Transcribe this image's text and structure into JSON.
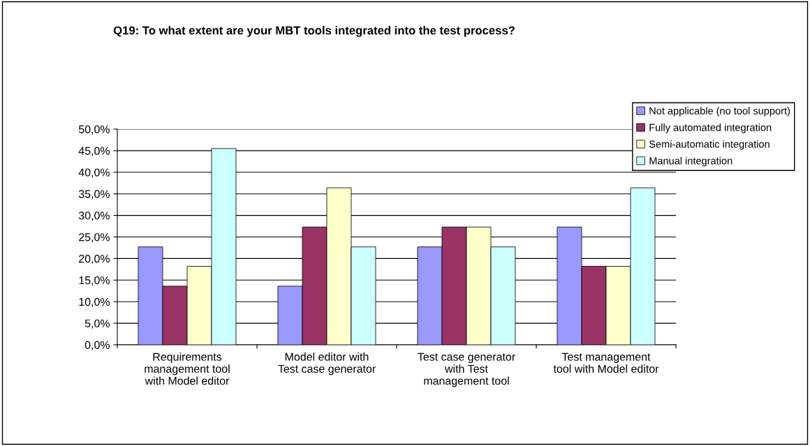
{
  "chart_data": {
    "type": "bar",
    "title": "Q19: To what extent are your MBT tools integrated into the test process?",
    "categories": [
      "Requirements\nmanagement tool\nwith Model editor",
      "Model editor with\nTest case generator",
      "Test case generator\nwith Test\nmanagement tool",
      "Test management\ntool with Model editor"
    ],
    "series": [
      {
        "name": "Not applicable (no tool support)",
        "color": "#9999ff",
        "values": [
          22.7,
          13.6,
          22.7,
          27.3
        ]
      },
      {
        "name": "Fully automated integration",
        "color": "#993366",
        "values": [
          13.6,
          27.3,
          27.3,
          18.2
        ]
      },
      {
        "name": "Semi-automatic integration",
        "color": "#ffffcc",
        "values": [
          18.2,
          36.4,
          27.3,
          18.2
        ]
      },
      {
        "name": "Manual integration",
        "color": "#ccffff",
        "values": [
          45.5,
          22.7,
          22.7,
          36.4
        ]
      }
    ],
    "ylim": [
      0,
      50
    ],
    "yticks": [
      {
        "value": 0,
        "label": "0,0%"
      },
      {
        "value": 5,
        "label": "5,0%"
      },
      {
        "value": 10,
        "label": "10,0%"
      },
      {
        "value": 15,
        "label": "15,0%"
      },
      {
        "value": 20,
        "label": "20,0%"
      },
      {
        "value": 25,
        "label": "25,0%"
      },
      {
        "value": 30,
        "label": "30,0%"
      },
      {
        "value": 35,
        "label": "35,0%"
      },
      {
        "value": 40,
        "label": "40,0%"
      },
      {
        "value": 45,
        "label": "45,0%"
      },
      {
        "value": 50,
        "label": "50,0%"
      }
    ],
    "grid": "y",
    "legend": "top right"
  }
}
